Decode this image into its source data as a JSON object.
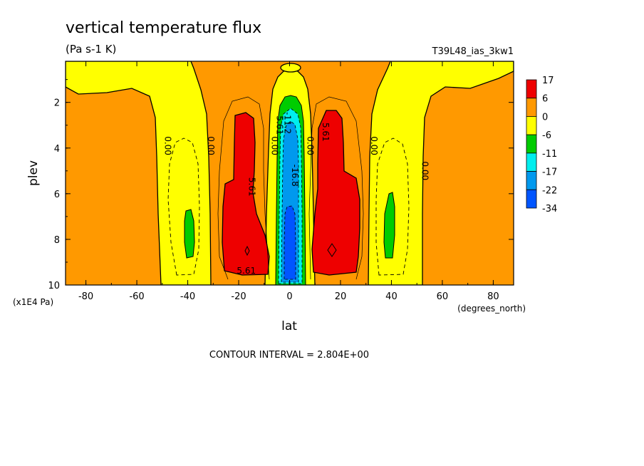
{
  "chart_data": {
    "type": "heatmap",
    "title": "vertical temperature flux",
    "units": "(Pa s-1 K)",
    "run_label": "T39L48_ias_3kw1",
    "xlabel": "lat",
    "x_units": "(degrees_north)",
    "ylabel": "plev",
    "y_units": "(x1E4 Pa)",
    "xlim": [
      -88,
      88
    ],
    "ylim": [
      10,
      0.2
    ],
    "x_ticks": [
      "-80",
      "-60",
      "-40",
      "-20",
      "0",
      "20",
      "40",
      "60",
      "80"
    ],
    "y_ticks": [
      "2",
      "4",
      "6",
      "8",
      "10"
    ],
    "x_tick_values": [
      -80,
      -60,
      -40,
      -20,
      0,
      20,
      40,
      60,
      80
    ],
    "y_tick_values": [
      2,
      4,
      6,
      8,
      10
    ],
    "colorbar": {
      "labels": [
        "17",
        "6",
        "0",
        "-6",
        "-11",
        "-17",
        "-22",
        "-34"
      ],
      "colors": [
        "#ee0000",
        "#ff9900",
        "#ffff00",
        "#00cc00",
        "#00eeee",
        "#0099ee",
        "#0055ff"
      ]
    },
    "contour_labels": [
      {
        "text": "0.00",
        "lat": -49,
        "plev": 3.9
      },
      {
        "text": "0.00",
        "lat": -32,
        "plev": 3.9
      },
      {
        "text": "5.61",
        "lat": -16,
        "plev": 5.7
      },
      {
        "text": "0.00",
        "lat": -7,
        "plev": 3.9
      },
      {
        "text": "5.61",
        "lat": -5,
        "plev": 3.0
      },
      {
        "text": "-11.2",
        "lat": -2,
        "plev": 2.9
      },
      {
        "text": "-16.8",
        "lat": 1,
        "plev": 5.2
      },
      {
        "text": "0.00",
        "lat": 7,
        "plev": 3.9
      },
      {
        "text": "5.61",
        "lat": 13,
        "plev": 3.3
      },
      {
        "text": "0.00",
        "lat": 32,
        "plev": 3.9
      },
      {
        "text": "0.00",
        "lat": 52,
        "plev": 5.0
      },
      {
        "text": "5.61",
        "lat": -17,
        "plev": 9.5
      }
    ],
    "grid": false,
    "contour_interval_text": "CONTOUR INTERVAL = 2.804E+00"
  }
}
